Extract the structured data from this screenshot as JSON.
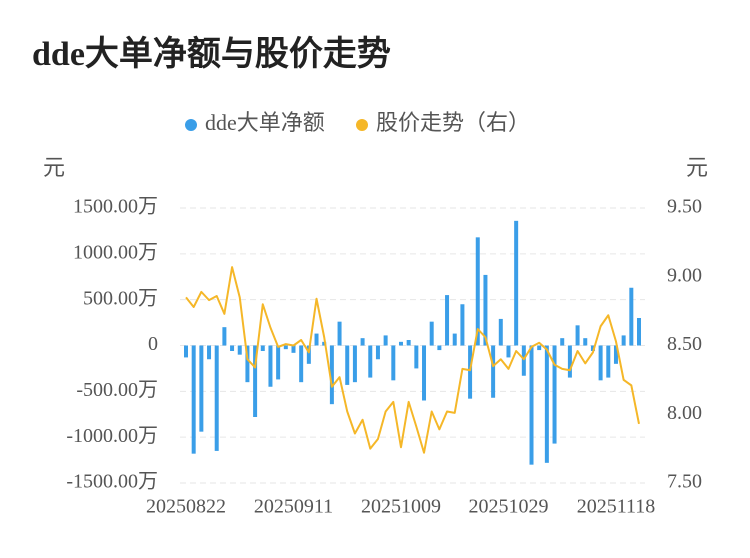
{
  "chart_data": {
    "type": "bar_line",
    "title": "dde大单净额与股价走势",
    "y_label": "元",
    "y2_label": "元",
    "categories": [
      "20250822",
      null,
      null,
      null,
      null,
      null,
      null,
      null,
      null,
      null,
      null,
      null,
      null,
      null,
      "20250911",
      null,
      null,
      null,
      null,
      null,
      null,
      null,
      null,
      null,
      null,
      null,
      null,
      null,
      "20251009",
      null,
      null,
      null,
      null,
      null,
      null,
      null,
      null,
      null,
      null,
      null,
      null,
      null,
      "20251029",
      null,
      null,
      null,
      null,
      null,
      null,
      null,
      null,
      null,
      null,
      null,
      null,
      null,
      "20251118",
      null,
      null,
      null
    ],
    "series": [
      {
        "name": "dde大单净额",
        "color": "#3a9ee8",
        "type": "bar",
        "axis": "y",
        "values": [
          -130,
          -1180,
          -940,
          -150,
          -1150,
          200,
          -60,
          -100,
          -400,
          -780,
          -60,
          -450,
          -370,
          -40,
          -80,
          -400,
          -200,
          130,
          40,
          -640,
          260,
          -430,
          -400,
          80,
          -350,
          -150,
          110,
          -380,
          40,
          60,
          -250,
          -600,
          260,
          -50,
          550,
          130,
          450,
          -580,
          1180,
          770,
          -570,
          290,
          -130,
          1360,
          -330,
          -1300,
          -50,
          -1280,
          -1070,
          80,
          -350,
          220,
          80,
          -60,
          -380,
          -350,
          -200,
          110,
          630,
          300
        ]
      },
      {
        "name": "股价走势（右）",
        "color": "#f5b728",
        "type": "line",
        "axis": "y2",
        "values": [
          8.85,
          8.78,
          8.89,
          8.83,
          8.86,
          8.73,
          9.07,
          8.85,
          8.4,
          8.34,
          8.8,
          8.63,
          8.49,
          8.51,
          8.5,
          8.54,
          8.45,
          8.84,
          8.56,
          8.2,
          8.27,
          8.02,
          7.86,
          7.96,
          7.75,
          7.82,
          8.02,
          8.09,
          7.76,
          8.09,
          7.91,
          7.72,
          8.02,
          7.89,
          8.02,
          8.01,
          8.33,
          8.32,
          8.62,
          8.56,
          8.35,
          8.4,
          8.33,
          8.46,
          8.4,
          8.49,
          8.52,
          8.47,
          8.36,
          8.33,
          8.32,
          8.46,
          8.37,
          8.45,
          8.64,
          8.72,
          8.53,
          8.25,
          8.21,
          7.93
        ]
      }
    ],
    "ylim": [
      -1500,
      1500
    ],
    "yticks": [
      {
        "value": -1500,
        "label": "-1500.00万"
      },
      {
        "value": -1000,
        "label": "-1000.00万"
      },
      {
        "value": -500,
        "label": "-500.00万"
      },
      0,
      {
        "value": 500,
        "label": "500.00万"
      },
      {
        "value": 1000,
        "label": "1000.00万"
      },
      {
        "value": 1500,
        "label": "1500.00万"
      }
    ],
    "y2lim": [
      7.5,
      9.5
    ],
    "y2ticks": [
      {
        "value": 7.5,
        "label": "7.50"
      },
      {
        "value": 8,
        "label": "8.00"
      },
      {
        "value": 8.5,
        "label": "8.50"
      },
      {
        "value": 9,
        "label": "9.00"
      },
      {
        "value": 9.5,
        "label": "9.50"
      }
    ],
    "grid": true,
    "legend": "top"
  }
}
